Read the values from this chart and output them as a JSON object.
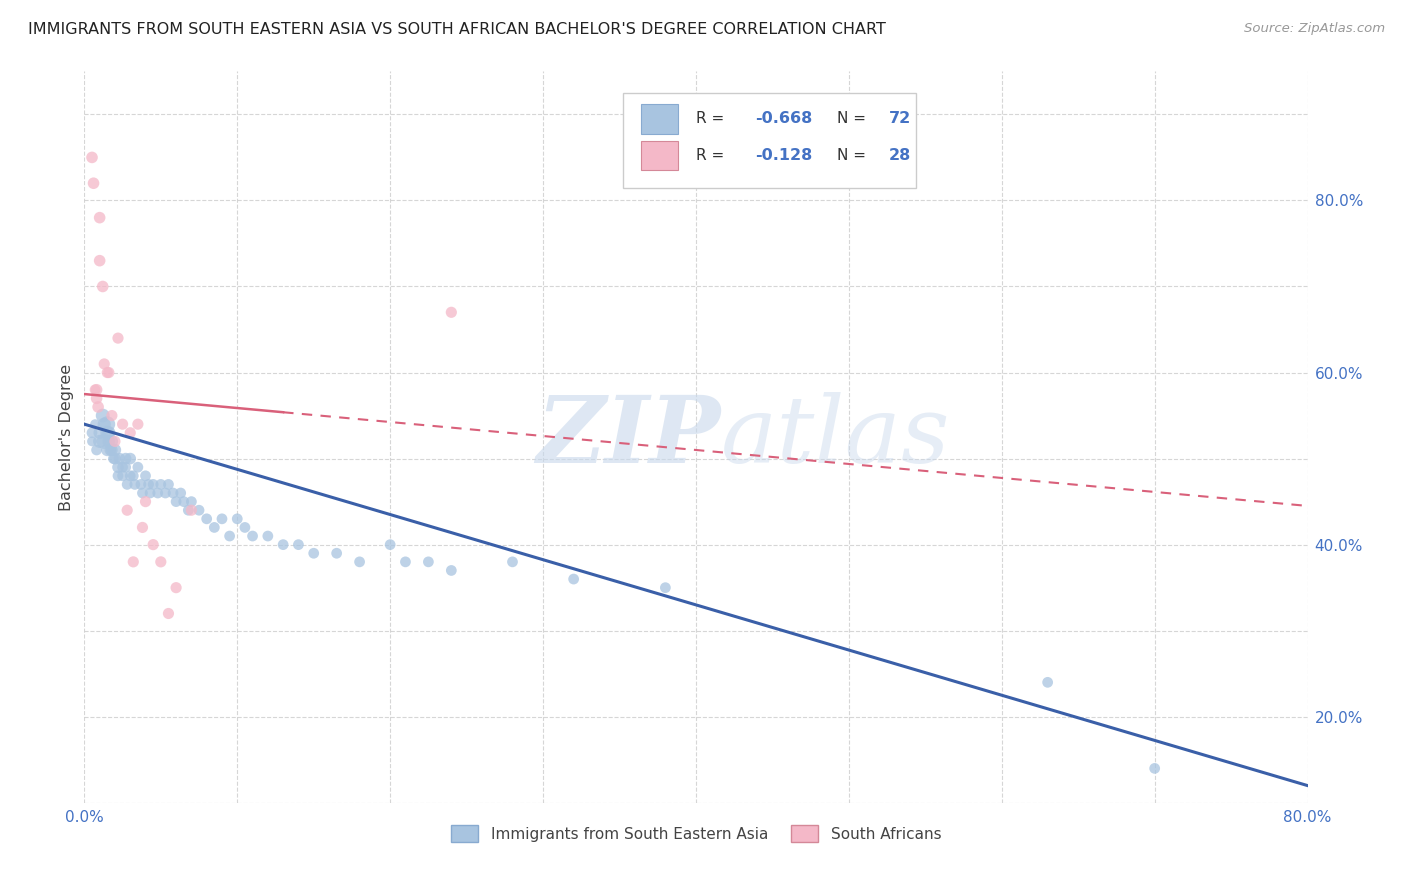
{
  "title": "IMMIGRANTS FROM SOUTH EASTERN ASIA VS SOUTH AFRICAN BACHELOR'S DEGREE CORRELATION CHART",
  "source": "Source: ZipAtlas.com",
  "ylabel": "Bachelor's Degree",
  "xlim": [
    0.0,
    0.8
  ],
  "ylim": [
    0.0,
    0.85
  ],
  "blue_color": "#a8c4e0",
  "pink_color": "#f4b8c8",
  "trend_blue_color": "#3a5fa8",
  "trend_pink_color": "#d9607a",
  "legend_R1": "-0.668",
  "legend_N1": "72",
  "legend_R2": "-0.128",
  "legend_N2": "28",
  "watermark_zip": "ZIP",
  "watermark_atlas": "atlas",
  "blue_x": [
    0.005,
    0.005,
    0.007,
    0.008,
    0.01,
    0.01,
    0.012,
    0.013,
    0.013,
    0.015,
    0.015,
    0.015,
    0.016,
    0.016,
    0.017,
    0.018,
    0.018,
    0.019,
    0.02,
    0.02,
    0.022,
    0.022,
    0.023,
    0.025,
    0.025,
    0.027,
    0.027,
    0.028,
    0.03,
    0.03,
    0.032,
    0.033,
    0.035,
    0.037,
    0.038,
    0.04,
    0.042,
    0.043,
    0.045,
    0.048,
    0.05,
    0.053,
    0.055,
    0.058,
    0.06,
    0.063,
    0.065,
    0.068,
    0.07,
    0.075,
    0.08,
    0.085,
    0.09,
    0.095,
    0.1,
    0.105,
    0.11,
    0.12,
    0.13,
    0.14,
    0.15,
    0.165,
    0.18,
    0.2,
    0.21,
    0.225,
    0.24,
    0.28,
    0.32,
    0.38,
    0.63,
    0.7
  ],
  "blue_y": [
    0.43,
    0.42,
    0.44,
    0.41,
    0.43,
    0.42,
    0.45,
    0.44,
    0.42,
    0.44,
    0.43,
    0.41,
    0.43,
    0.42,
    0.41,
    0.42,
    0.41,
    0.4,
    0.41,
    0.4,
    0.39,
    0.38,
    0.4,
    0.39,
    0.38,
    0.4,
    0.39,
    0.37,
    0.4,
    0.38,
    0.38,
    0.37,
    0.39,
    0.37,
    0.36,
    0.38,
    0.37,
    0.36,
    0.37,
    0.36,
    0.37,
    0.36,
    0.37,
    0.36,
    0.35,
    0.36,
    0.35,
    0.34,
    0.35,
    0.34,
    0.33,
    0.32,
    0.33,
    0.31,
    0.33,
    0.32,
    0.31,
    0.31,
    0.3,
    0.3,
    0.29,
    0.29,
    0.28,
    0.3,
    0.28,
    0.28,
    0.27,
    0.28,
    0.26,
    0.25,
    0.14,
    0.04
  ],
  "blue_sizes": [
    60,
    50,
    50,
    60,
    80,
    90,
    100,
    90,
    120,
    130,
    100,
    80,
    90,
    80,
    70,
    80,
    70,
    60,
    80,
    70,
    70,
    60,
    70,
    60,
    60,
    70,
    60,
    60,
    70,
    60,
    60,
    60,
    60,
    60,
    60,
    60,
    60,
    60,
    60,
    60,
    60,
    60,
    60,
    60,
    60,
    60,
    60,
    60,
    60,
    60,
    60,
    60,
    60,
    60,
    60,
    60,
    60,
    60,
    60,
    60,
    60,
    60,
    60,
    60,
    60,
    60,
    60,
    60,
    60,
    60,
    60,
    60
  ],
  "pink_x": [
    0.005,
    0.006,
    0.007,
    0.008,
    0.008,
    0.009,
    0.01,
    0.01,
    0.012,
    0.013,
    0.015,
    0.016,
    0.018,
    0.02,
    0.022,
    0.025,
    0.028,
    0.03,
    0.032,
    0.035,
    0.038,
    0.04,
    0.045,
    0.05,
    0.055,
    0.06,
    0.07,
    0.24
  ],
  "pink_y": [
    0.75,
    0.72,
    0.48,
    0.48,
    0.47,
    0.46,
    0.68,
    0.63,
    0.6,
    0.51,
    0.5,
    0.5,
    0.45,
    0.42,
    0.54,
    0.44,
    0.34,
    0.43,
    0.28,
    0.44,
    0.32,
    0.35,
    0.3,
    0.28,
    0.22,
    0.25,
    0.34,
    0.57
  ],
  "pink_sizes": [
    70,
    70,
    60,
    70,
    70,
    70,
    70,
    70,
    70,
    65,
    65,
    65,
    65,
    65,
    65,
    65,
    65,
    65,
    65,
    65,
    65,
    65,
    65,
    65,
    65,
    65,
    65,
    65
  ],
  "blue_trend_x0": 0.0,
  "blue_trend_y0": 0.44,
  "blue_trend_x1": 0.8,
  "blue_trend_y1": 0.02,
  "pink_trend_x0": 0.0,
  "pink_trend_y0": 0.475,
  "pink_trend_x1": 0.8,
  "pink_trend_y1": 0.345
}
